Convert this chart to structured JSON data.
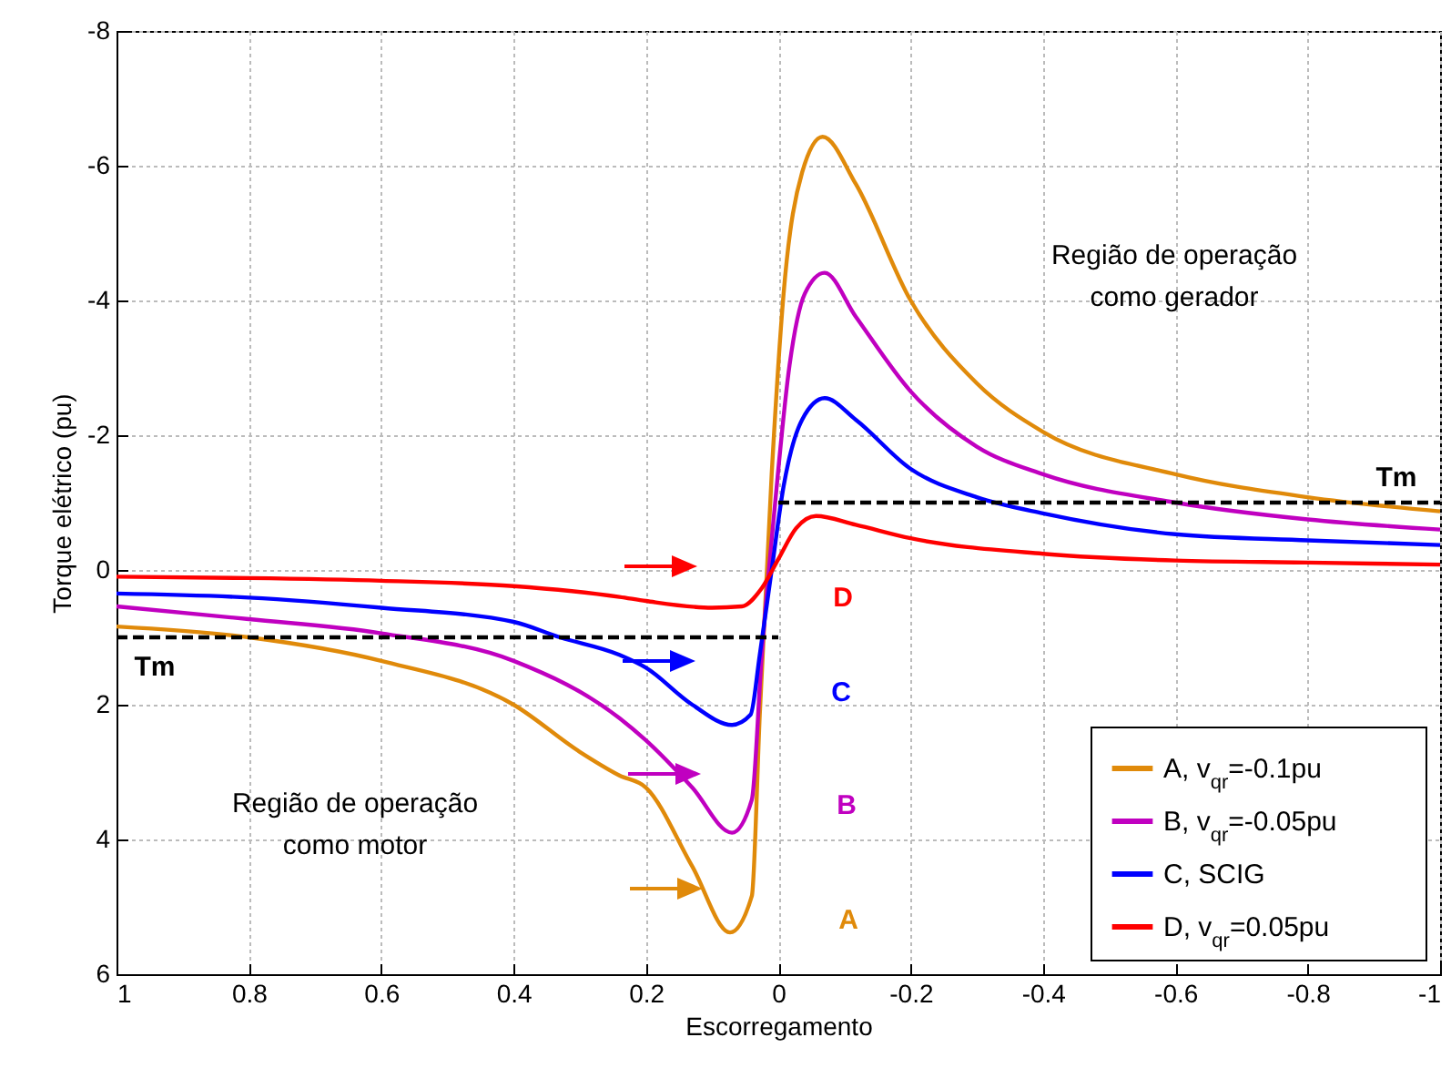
{
  "chart_data": {
    "type": "line",
    "xlabel": "Escorregamento",
    "ylabel": "Torque elétrico (pu)",
    "xlim": [
      1,
      -1
    ],
    "xticks": [
      1,
      0.8,
      0.6,
      0.4,
      0.2,
      0,
      -0.2,
      -0.4,
      -0.6,
      -0.8,
      -1
    ],
    "ylim": [
      6,
      -8
    ],
    "yticks": [
      -8,
      -6,
      -4,
      -2,
      0,
      2,
      4,
      6
    ],
    "grid": true,
    "legend": "bottom right",
    "line_style": "solid",
    "marker": "none",
    "series": [
      {
        "name": "A, v$_{qr}$=-0.1pu",
        "color": "#e08a0a",
        "x": [
          1,
          0.8,
          0.6,
          0.4,
          0.3,
          0.24,
          0.2,
          0.13,
          0.073,
          0.04,
          0.028,
          0.01,
          -0.008,
          -0.036,
          -0.067,
          -0.117,
          -0.2,
          -0.3,
          -0.4,
          -0.6,
          -0.8,
          -1
        ],
        "values": [
          0.84,
          1.0,
          1.35,
          2.0,
          2.7,
          3.05,
          3.23,
          4.4,
          5.38,
          4.84,
          2.15,
          -1.42,
          -4.1,
          -5.9,
          -6.43,
          -5.73,
          -4.0,
          -2.77,
          -2.05,
          -1.42,
          -1.08,
          -0.87
        ]
      },
      {
        "name": "B, v$_{qr}$=-0.05pu",
        "color": "#c000c0",
        "x": [
          1,
          0.8,
          0.6,
          0.4,
          0.24,
          0.2,
          0.13,
          0.07,
          0.04,
          0.025,
          0.005,
          -0.017,
          -0.04,
          -0.07,
          -0.117,
          -0.2,
          -0.3,
          -0.4,
          -0.6,
          -0.8,
          -1
        ],
        "values": [
          0.54,
          0.73,
          0.94,
          1.35,
          2.2,
          2.53,
          3.23,
          3.9,
          3.41,
          1.26,
          -0.97,
          -3.04,
          -4.1,
          -4.41,
          -3.76,
          -2.65,
          -1.83,
          -1.42,
          -1.0,
          -0.75,
          -0.6
        ]
      },
      {
        "name": "C, SCIG",
        "color": "#0000ff",
        "x": [
          1,
          0.8,
          0.6,
          0.4,
          0.33,
          0.24,
          0.2,
          0.13,
          0.07,
          0.042,
          0.028,
          0.01,
          -0.008,
          -0.036,
          -0.07,
          -0.117,
          -0.2,
          -0.3,
          -0.4,
          -0.6,
          -0.8,
          -1
        ],
        "values": [
          0.35,
          0.41,
          0.56,
          0.77,
          1.0,
          1.26,
          1.45,
          2.0,
          2.3,
          2.15,
          1.26,
          0,
          -1.24,
          -2.23,
          -2.55,
          -2.23,
          -1.5,
          -1.08,
          -0.84,
          -0.53,
          -0.44,
          -0.37
        ]
      },
      {
        "name": "D, v$_{qr}$=0.05pu",
        "color": "#ff0000",
        "x": [
          1,
          0.8,
          0.6,
          0.4,
          0.24,
          0.2,
          0.1,
          0.055,
          0.025,
          0,
          -0.027,
          -0.057,
          -0.117,
          -0.2,
          -0.4,
          -0.6,
          -0.8,
          -1
        ],
        "values": [
          0.1,
          0.12,
          0.16,
          0.24,
          0.4,
          0.46,
          0.56,
          0.54,
          0.27,
          -0.16,
          -0.62,
          -0.8,
          -0.67,
          -0.47,
          -0.24,
          -0.14,
          -0.11,
          -0.08
        ]
      },
      {
        "color": "#000000",
        "line_style": "dashed",
        "x": [
          1,
          0
        ],
        "values": [
          1,
          1
        ]
      },
      {
        "color": "#000000",
        "line_style": "dashed",
        "x": [
          0,
          -1
        ],
        "values": [
          -1,
          -1
        ]
      }
    ],
    "annotations": [
      "A",
      "B",
      "C",
      "D",
      "Tm",
      "Tm",
      "Região de operação\ncomo gerador",
      "Região de operação\ncomo motor"
    ]
  }
}
